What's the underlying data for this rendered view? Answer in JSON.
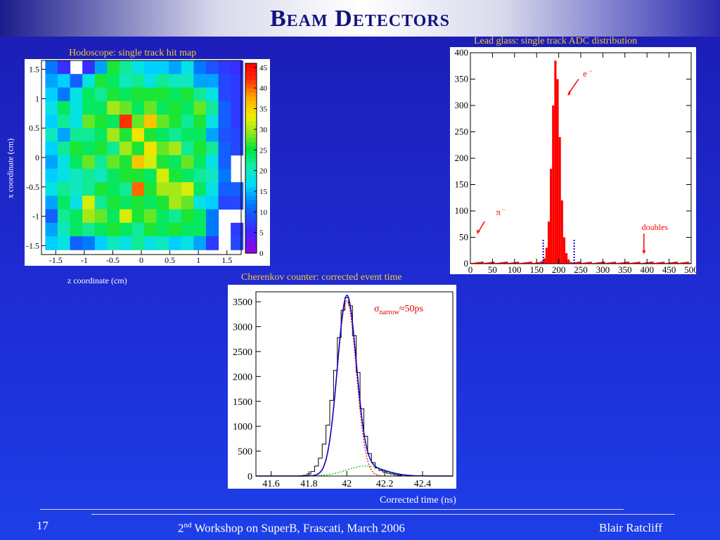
{
  "slide": {
    "title": "Beam Detectors",
    "page_number": "17",
    "footer_center_prefix": "2",
    "footer_center_sup": "nd",
    "footer_center_rest": " Workshop on SuperB, Frascati, March 2006",
    "footer_right": "Blair Ratcliff"
  },
  "chart_data": [
    {
      "type": "heatmap",
      "title": "Hodoscope: single track hit map",
      "xlabel": "z coordinate (cm)",
      "ylabel": "x coordinate (cm)",
      "x_ticks": [
        "-1.5",
        "-1",
        "-0.5",
        "0",
        "0.5",
        "1",
        "1.5"
      ],
      "y_ticks": [
        "1.5",
        "1",
        "0.5",
        "0",
        "-0.5",
        "-1",
        "-1.5"
      ],
      "xlim": [
        -1.75,
        1.75
      ],
      "ylim": [
        -1.65,
        1.65
      ],
      "colorbar_ticks": [
        "45",
        "40",
        "35",
        "30",
        "25",
        "20",
        "15",
        "10",
        "5",
        "0"
      ],
      "zlim": [
        0,
        46
      ],
      "x_centers": [
        -1.575,
        -1.358,
        -1.142,
        -0.925,
        -0.708,
        -0.492,
        -0.275,
        -0.058,
        0.158,
        0.375,
        0.592,
        0.808,
        1.025,
        1.242,
        1.458,
        1.675
      ],
      "y_centers": [
        1.535,
        1.305,
        1.075,
        0.845,
        0.615,
        0.385,
        0.155,
        -0.075,
        -0.305,
        -0.535,
        -0.765,
        -0.995,
        -1.225,
        -1.455
      ],
      "values": [
        [
          12,
          6,
          0,
          6,
          14,
          26,
          22,
          18,
          16,
          16,
          14,
          18,
          12,
          9,
          7,
          6
        ],
        [
          14,
          16,
          10,
          18,
          26,
          24,
          20,
          22,
          18,
          22,
          20,
          20,
          14,
          14,
          8,
          7
        ],
        [
          16,
          12,
          18,
          24,
          22,
          26,
          24,
          26,
          26,
          26,
          24,
          26,
          22,
          18,
          8,
          7
        ],
        [
          18,
          24,
          18,
          24,
          24,
          30,
          28,
          24,
          28,
          24,
          26,
          24,
          28,
          22,
          10,
          7
        ],
        [
          16,
          22,
          18,
          28,
          26,
          24,
          42,
          28,
          36,
          28,
          26,
          22,
          26,
          18,
          10,
          7
        ],
        [
          20,
          14,
          22,
          22,
          24,
          30,
          26,
          34,
          26,
          24,
          22,
          24,
          24,
          14,
          9,
          8
        ],
        [
          16,
          22,
          26,
          24,
          26,
          22,
          30,
          26,
          34,
          28,
          30,
          22,
          26,
          22,
          10,
          8
        ],
        [
          14,
          18,
          24,
          28,
          22,
          28,
          26,
          36,
          32,
          26,
          24,
          28,
          24,
          18,
          10,
          0
        ],
        [
          16,
          18,
          20,
          22,
          20,
          24,
          26,
          26,
          24,
          32,
          26,
          24,
          22,
          20,
          12,
          0
        ],
        [
          18,
          22,
          20,
          22,
          26,
          24,
          22,
          40,
          26,
          30,
          30,
          32,
          24,
          18,
          10,
          10
        ],
        [
          14,
          24,
          18,
          32,
          22,
          26,
          24,
          26,
          24,
          26,
          30,
          28,
          18,
          16,
          8,
          8
        ],
        [
          10,
          22,
          24,
          30,
          28,
          24,
          32,
          26,
          28,
          24,
          22,
          26,
          24,
          12,
          0,
          0
        ],
        [
          14,
          20,
          24,
          22,
          24,
          26,
          24,
          22,
          26,
          24,
          26,
          24,
          24,
          12,
          0,
          7
        ],
        [
          16,
          18,
          10,
          12,
          16,
          20,
          18,
          22,
          18,
          20,
          16,
          18,
          14,
          7,
          0,
          8
        ]
      ]
    },
    {
      "type": "bar",
      "title": "Lead glass: single track ADC distribution",
      "x_ticks": [
        "0",
        "50",
        "100",
        "150",
        "200",
        "250",
        "300",
        "350",
        "400",
        "450",
        "500"
      ],
      "y_ticks": [
        "0",
        "50",
        "100",
        "150",
        "200",
        "250",
        "300",
        "350",
        "400"
      ],
      "xlim": [
        0,
        500
      ],
      "ylim": [
        0,
        400
      ],
      "bin_width": 5,
      "x": [
        160,
        165,
        170,
        175,
        180,
        185,
        190,
        195,
        200,
        205,
        210,
        215,
        220,
        225
      ],
      "values": [
        5,
        10,
        30,
        80,
        180,
        300,
        385,
        350,
        240,
        120,
        50,
        20,
        8,
        3
      ],
      "background_level": 3,
      "annotations": [
        {
          "text": "e",
          "sup": " −",
          "x": 200,
          "y": 360
        },
        {
          "text": "π",
          "sup": " −",
          "x": 25,
          "y": 95
        },
        {
          "text": "doubles",
          "x": 400,
          "y": 60
        }
      ],
      "cut_lines_x": [
        165,
        235
      ],
      "colors": {
        "bars": "#ff0000",
        "arrows": "#ff0000",
        "cuts": "#0000cc"
      }
    },
    {
      "type": "line",
      "title": "Cherenkov counter: corrected event time",
      "xlabel": "Corrected time (ns)",
      "x_ticks": [
        "41.6",
        "41.8",
        "42",
        "42.2",
        "42.4"
      ],
      "y_ticks": [
        "0",
        "500",
        "1000",
        "1500",
        "2000",
        "2500",
        "3000",
        "3500"
      ],
      "xlim": [
        41.52,
        42.56
      ],
      "ylim": [
        0,
        3700
      ],
      "histogram_x": [
        41.76,
        41.78,
        41.8,
        41.82,
        41.84,
        41.86,
        41.88,
        41.9,
        41.92,
        41.94,
        41.96,
        41.98,
        42.0,
        42.02,
        42.04,
        42.06,
        42.08,
        42.1,
        42.12,
        42.14,
        42.16,
        42.18,
        42.2,
        42.22,
        42.24,
        42.26,
        42.28
      ],
      "histogram_values": [
        5,
        15,
        40,
        90,
        200,
        360,
        640,
        1020,
        1520,
        2120,
        2780,
        3330,
        3580,
        3420,
        2820,
        2080,
        1350,
        800,
        450,
        270,
        160,
        110,
        80,
        55,
        40,
        25,
        15
      ],
      "fit": {
        "total": {
          "mean": 42.0,
          "sigma": 0.05,
          "amplitude": 3580
        },
        "narrow": {
          "mean": 42.0,
          "sigma": 0.05,
          "amplitude": 3520
        },
        "wide": {
          "mean": 42.1,
          "sigma": 0.1,
          "amplitude": 200
        }
      },
      "annotation": {
        "sigma": "σ",
        "sub": "narrow",
        "rest": "≈50ps"
      },
      "colors": {
        "histogram": "#000000",
        "total_fit": "#0000cc",
        "narrow_fit": "#ff0000",
        "wide_fit": "#00cc00"
      }
    }
  ]
}
